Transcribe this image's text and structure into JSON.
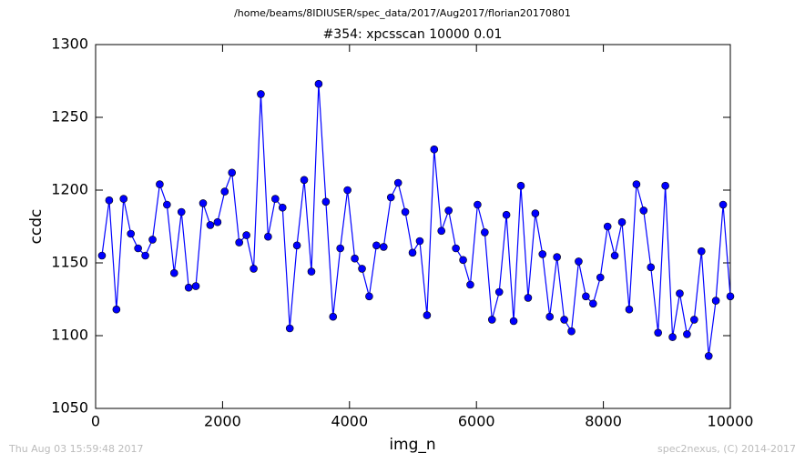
{
  "chart_data": {
    "type": "line",
    "suptitle": "/home/beams/8IDIUSER/spec_data/2017/Aug2017/florian20170801",
    "title": "#354: xpcsscan 10000 0.01",
    "xlabel": "img_n",
    "ylabel": "ccdc",
    "footer_left": "Thu Aug 03 15:59:48 2017",
    "footer_right": "spec2nexus, (C) 2014-2017",
    "color": "#0000ff",
    "x": [
      100,
      214,
      328,
      441,
      555,
      669,
      783,
      897,
      1010,
      1124,
      1238,
      1352,
      1466,
      1579,
      1693,
      1807,
      1921,
      2034,
      2148,
      2262,
      2376,
      2490,
      2603,
      2717,
      2831,
      2945,
      3059,
      3172,
      3286,
      3400,
      3514,
      3628,
      3741,
      3855,
      3969,
      4083,
      4197,
      4310,
      4424,
      4538,
      4652,
      4766,
      4879,
      4993,
      5107,
      5221,
      5334,
      5448,
      5562,
      5676,
      5790,
      5903,
      6017,
      6131,
      6245,
      6359,
      6472,
      6586,
      6700,
      6814,
      6928,
      7041,
      7155,
      7269,
      7383,
      7497,
      7610,
      7724,
      7838,
      7952,
      8066,
      8179,
      8293,
      8407,
      8521,
      8634,
      8748,
      8862,
      8976,
      9090,
      9203,
      9317,
      9431,
      9545,
      9659,
      9772,
      9886,
      10000
    ],
    "values": [
      1155,
      1193,
      1118,
      1194,
      1170,
      1160,
      1155,
      1166,
      1204,
      1190,
      1143,
      1185,
      1133,
      1134,
      1191,
      1176,
      1178,
      1199,
      1212,
      1164,
      1169,
      1146,
      1266,
      1168,
      1194,
      1188,
      1105,
      1162,
      1207,
      1144,
      1273,
      1192,
      1113,
      1160,
      1200,
      1153,
      1146,
      1127,
      1162,
      1161,
      1195,
      1205,
      1185,
      1157,
      1165,
      1114,
      1228,
      1172,
      1186,
      1160,
      1152,
      1135,
      1190,
      1171,
      1111,
      1130,
      1183,
      1110,
      1203,
      1126,
      1184,
      1156,
      1113,
      1154,
      1111,
      1103,
      1151,
      1127,
      1122,
      1140,
      1175,
      1155,
      1178,
      1118,
      1204,
      1186,
      1147,
      1102,
      1203,
      1099,
      1129,
      1101,
      1111,
      1158,
      1086,
      1124,
      1190,
      1127
    ],
    "xlim": [
      0,
      10000
    ],
    "xticks": [
      0,
      2000,
      4000,
      6000,
      8000,
      10000
    ],
    "ylim": [
      1050,
      1300
    ],
    "yticks": [
      1050,
      1100,
      1150,
      1200,
      1250,
      1300
    ]
  }
}
